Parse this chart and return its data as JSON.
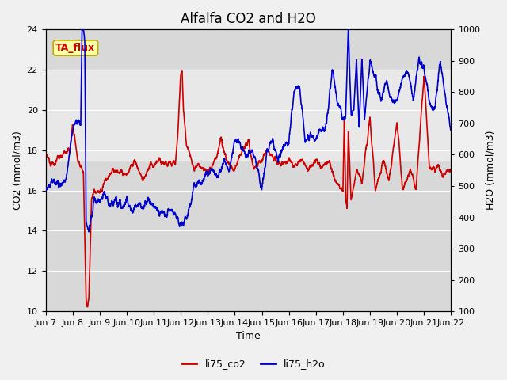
{
  "title": "Alfalfa CO2 and H2O",
  "xlabel": "Time",
  "ylabel_left": "CO2 (mmol/m3)",
  "ylabel_right": "H2O (mmol/m3)",
  "annotation": "TA_flux",
  "xlim_days": [
    7,
    22
  ],
  "ylim_left": [
    10,
    24
  ],
  "ylim_right": [
    100,
    1000
  ],
  "xtick_labels": [
    "Jun 7",
    "Jun 8",
    "Jun 9",
    "Jun 10",
    "Jun 11",
    "Jun 12",
    "Jun 13",
    "Jun 14",
    "Jun 15",
    "Jun 16",
    "Jun 17",
    "Jun 18",
    "Jun 19",
    "Jun 20",
    "Jun 21",
    "Jun 22"
  ],
  "xtick_positions": [
    7,
    8,
    9,
    10,
    11,
    12,
    13,
    14,
    15,
    16,
    17,
    18,
    19,
    20,
    21,
    22
  ],
  "yticks_left": [
    10,
    12,
    14,
    16,
    18,
    20,
    22,
    24
  ],
  "yticks_right": [
    100,
    200,
    300,
    400,
    500,
    600,
    700,
    800,
    900,
    1000
  ],
  "color_co2": "#cc0000",
  "color_h2o": "#0000cc",
  "legend_co2": "li75_co2",
  "legend_h2o": "li75_h2o",
  "fig_facecolor": "#f0f0f0",
  "plot_bg_dark": "#d8d8d8",
  "plot_bg_light": "#e8e8e8",
  "grid_color": "#ffffff",
  "band_y1": 17.5,
  "band_y2": 22.0,
  "title_fontsize": 12,
  "label_fontsize": 9,
  "tick_fontsize": 8,
  "linewidth": 1.2
}
